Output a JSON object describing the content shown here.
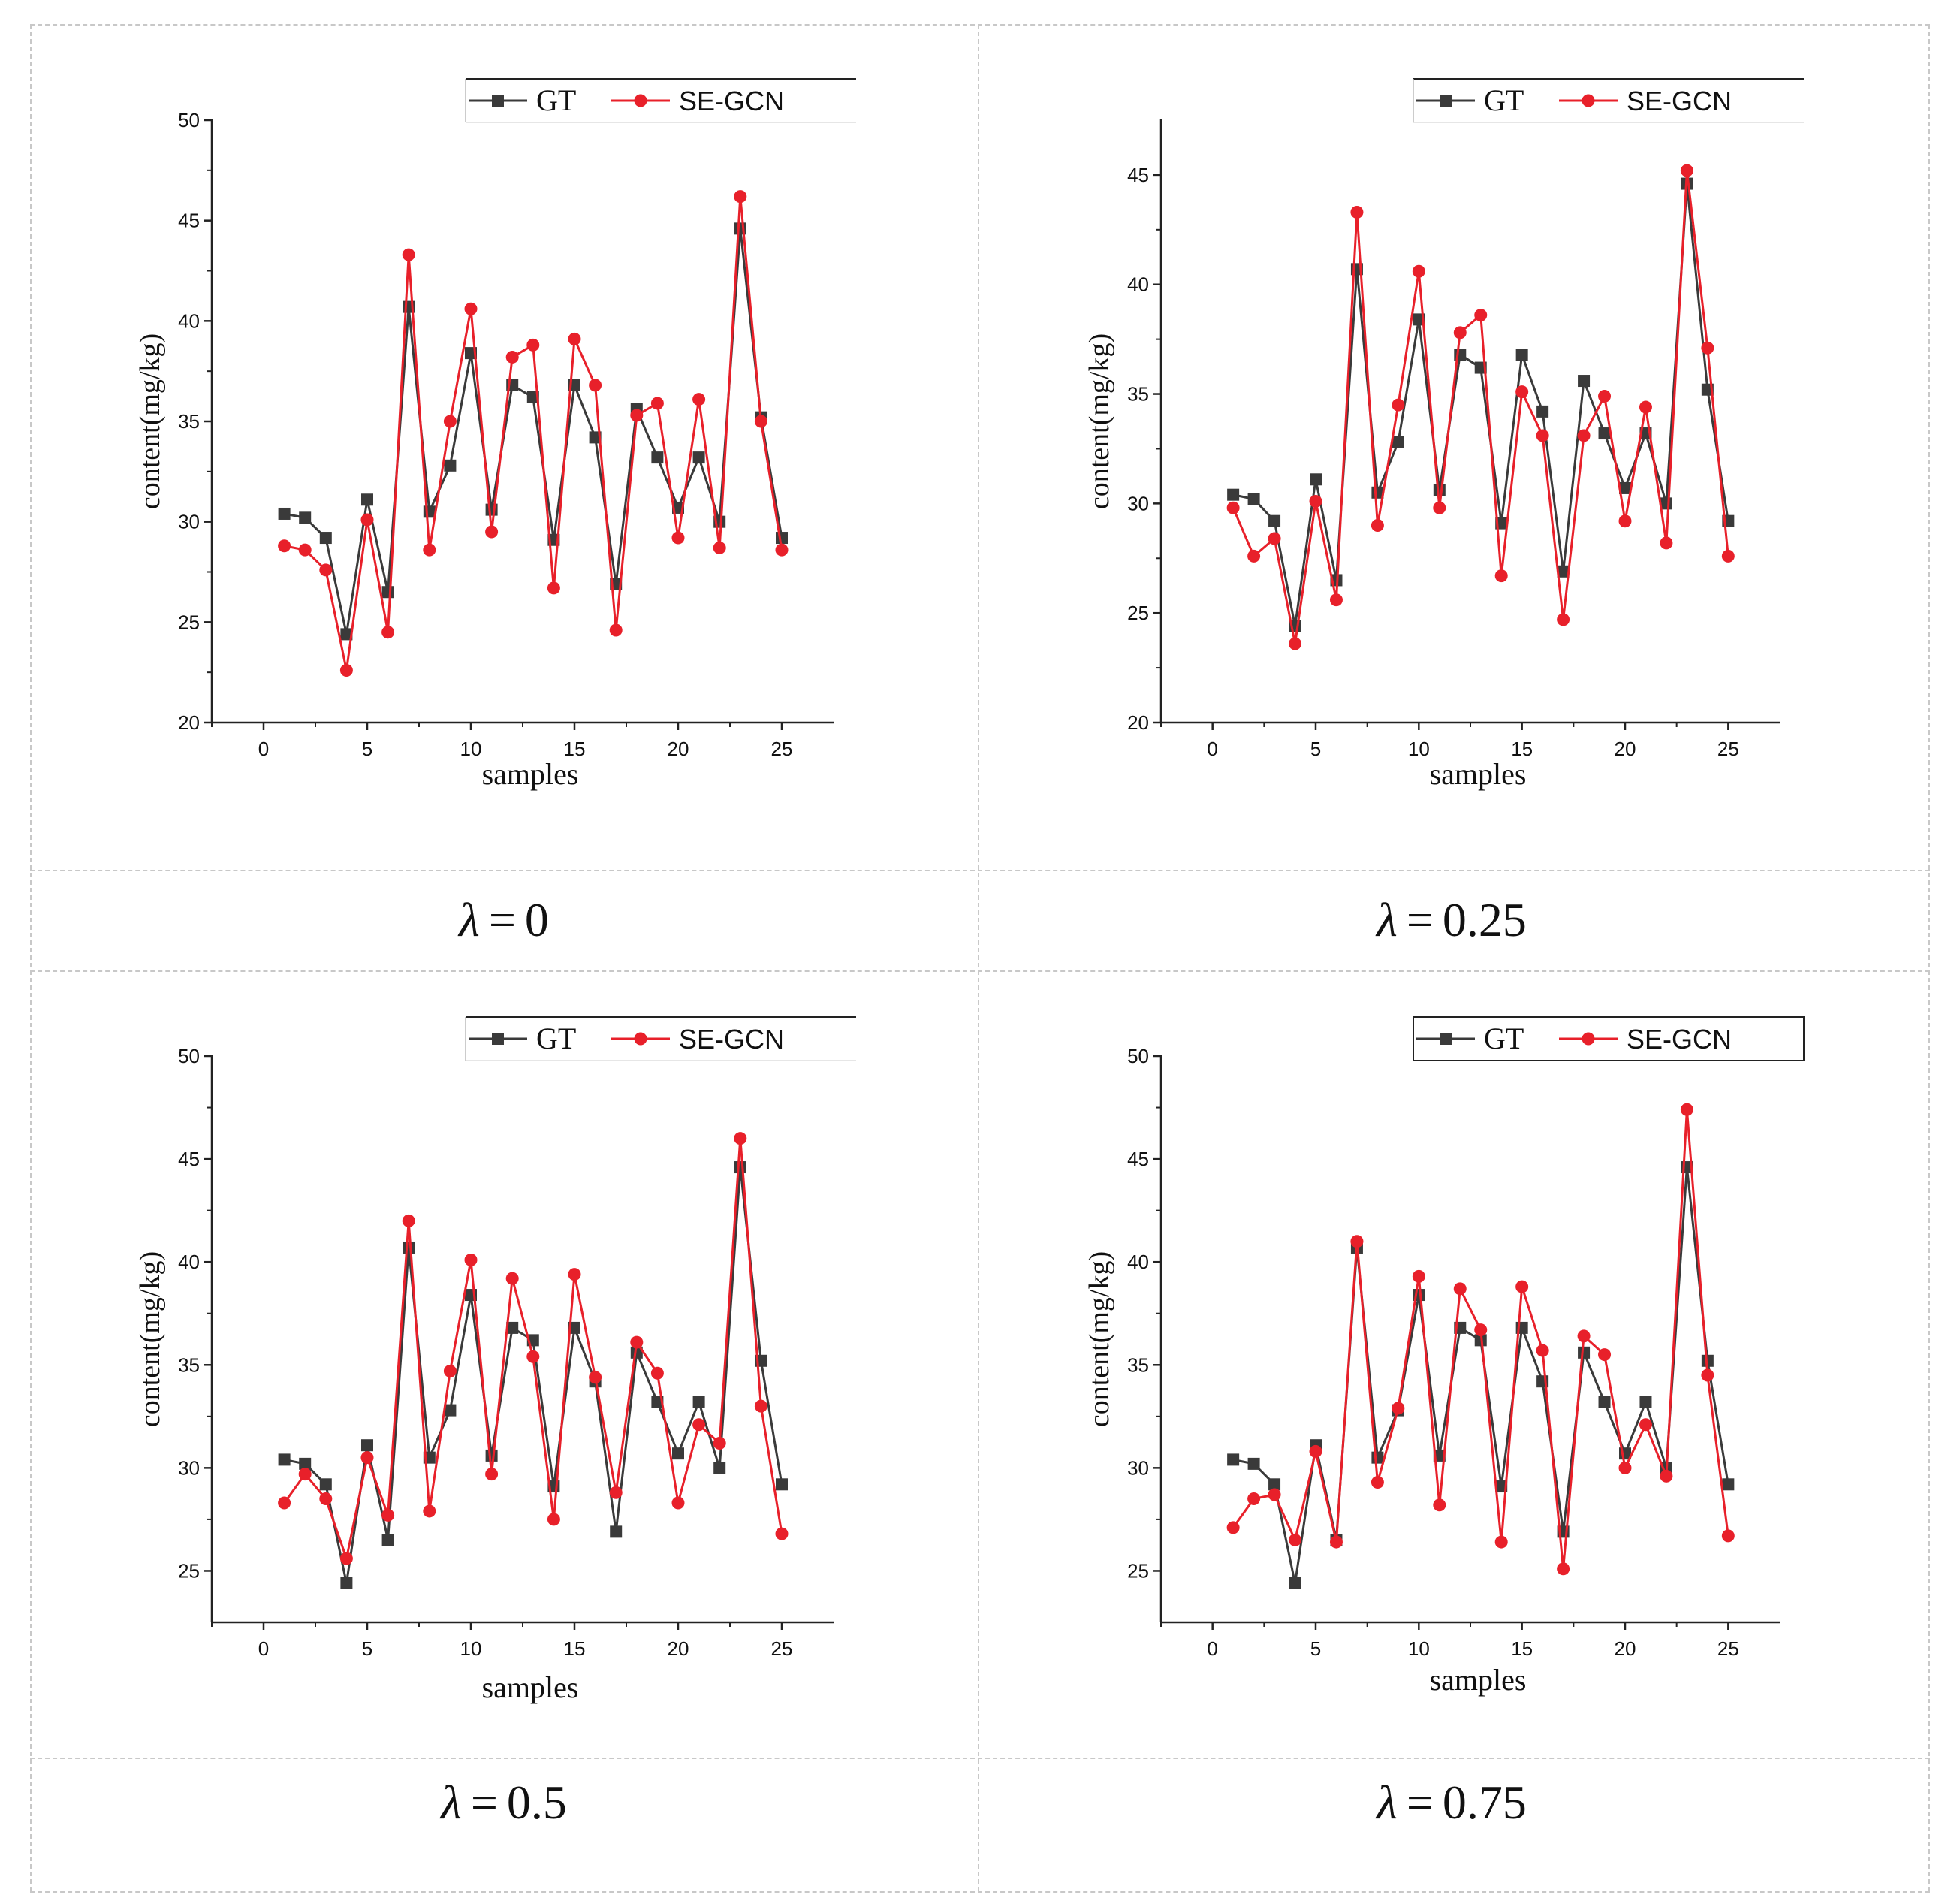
{
  "colors": {
    "gt": "#3a3a3a",
    "pred": "#e8202a",
    "grid": "#c8c8c8"
  },
  "chart_data": [
    {
      "type": "line",
      "caption": {
        "symbol": "λ",
        "equals": "=",
        "value": "0"
      },
      "xlabel": "samples",
      "ylabel": "content(mg/kg)",
      "xlim": [
        -2.5,
        27.5
      ],
      "ylim": [
        20,
        50
      ],
      "xticks": [
        0,
        5,
        10,
        15,
        20,
        25
      ],
      "yticks": [
        20,
        25,
        30,
        35,
        40,
        45,
        50
      ],
      "legend": {
        "position": "top-right",
        "boxed": false
      },
      "x": [
        1,
        2,
        3,
        4,
        5,
        6,
        7,
        8,
        9,
        10,
        11,
        12,
        13,
        14,
        15,
        16,
        17,
        18,
        19,
        20,
        21,
        22,
        23,
        24,
        25
      ],
      "series": [
        {
          "name": "GT",
          "marker": "square",
          "color": "#3a3a3a",
          "values": [
            30.4,
            30.2,
            29.2,
            24.4,
            31.1,
            26.5,
            40.7,
            30.5,
            32.8,
            38.4,
            30.6,
            36.8,
            36.2,
            29.1,
            36.8,
            34.2,
            26.9,
            35.6,
            33.2,
            30.7,
            33.2,
            30.0,
            44.6,
            35.2,
            29.2
          ]
        },
        {
          "name": "SE-GCN",
          "marker": "circle",
          "color": "#e8202a",
          "values": [
            28.8,
            28.6,
            27.6,
            22.6,
            30.1,
            24.5,
            43.3,
            28.6,
            35.0,
            40.6,
            29.5,
            38.2,
            38.8,
            26.7,
            39.1,
            36.8,
            24.6,
            35.3,
            35.9,
            29.2,
            36.1,
            28.7,
            46.2,
            35.0,
            28.6
          ]
        }
      ]
    },
    {
      "type": "line",
      "caption": {
        "symbol": "λ",
        "equals": "=",
        "value": "0.25"
      },
      "xlabel": "samples",
      "ylabel": "content(mg/kg)",
      "xlim": [
        -2.5,
        27.5
      ],
      "ylim": [
        20,
        47.5
      ],
      "xticks": [
        0,
        5,
        10,
        15,
        20,
        25
      ],
      "yticks": [
        20,
        25,
        30,
        35,
        40,
        45
      ],
      "legend": {
        "position": "top-right",
        "boxed": false
      },
      "x": [
        1,
        2,
        3,
        4,
        5,
        6,
        7,
        8,
        9,
        10,
        11,
        12,
        13,
        14,
        15,
        16,
        17,
        18,
        19,
        20,
        21,
        22,
        23,
        24,
        25
      ],
      "series": [
        {
          "name": "GT",
          "marker": "square",
          "color": "#3a3a3a",
          "values": [
            30.4,
            30.2,
            29.2,
            24.4,
            31.1,
            26.5,
            40.7,
            30.5,
            32.8,
            38.4,
            30.6,
            36.8,
            36.2,
            29.1,
            36.8,
            34.2,
            26.9,
            35.6,
            33.2,
            30.7,
            33.2,
            30.0,
            44.6,
            35.2,
            29.2
          ]
        },
        {
          "name": "SE-GCN",
          "marker": "circle",
          "color": "#e8202a",
          "values": [
            29.8,
            27.6,
            28.4,
            23.6,
            30.1,
            25.6,
            43.3,
            29.0,
            34.5,
            40.6,
            29.8,
            37.8,
            38.6,
            26.7,
            35.1,
            33.1,
            24.7,
            33.1,
            34.9,
            29.2,
            34.4,
            28.2,
            45.2,
            37.1,
            27.6
          ]
        }
      ]
    },
    {
      "type": "line",
      "caption": {
        "symbol": "λ",
        "equals": "=",
        "value": "0.5"
      },
      "xlabel": "samples",
      "ylabel": "content(mg/kg)",
      "xlim": [
        -2.5,
        27.5
      ],
      "ylim": [
        22.5,
        50
      ],
      "xticks": [
        0,
        5,
        10,
        15,
        20,
        25
      ],
      "yticks": [
        25,
        30,
        35,
        40,
        45,
        50
      ],
      "legend": {
        "position": "top-right",
        "boxed": false
      },
      "x": [
        1,
        2,
        3,
        4,
        5,
        6,
        7,
        8,
        9,
        10,
        11,
        12,
        13,
        14,
        15,
        16,
        17,
        18,
        19,
        20,
        21,
        22,
        23,
        24,
        25
      ],
      "series": [
        {
          "name": "GT",
          "marker": "square",
          "color": "#3a3a3a",
          "values": [
            30.4,
            30.2,
            29.2,
            24.4,
            31.1,
            26.5,
            40.7,
            30.5,
            32.8,
            38.4,
            30.6,
            36.8,
            36.2,
            29.1,
            36.8,
            34.2,
            26.9,
            35.6,
            33.2,
            30.7,
            33.2,
            30.0,
            44.6,
            35.2,
            29.2
          ]
        },
        {
          "name": "SE-GCN",
          "marker": "circle",
          "color": "#e8202a",
          "values": [
            28.3,
            29.7,
            28.5,
            25.6,
            30.5,
            27.7,
            42.0,
            27.9,
            34.7,
            40.1,
            29.7,
            39.2,
            35.4,
            27.5,
            39.4,
            34.4,
            28.8,
            36.1,
            34.6,
            28.3,
            32.1,
            31.2,
            46.0,
            33.0,
            26.8
          ]
        }
      ]
    },
    {
      "type": "line",
      "caption": {
        "symbol": "λ",
        "equals": "=",
        "value": "0.75"
      },
      "xlabel": "samples",
      "ylabel": "content(mg/kg)",
      "xlim": [
        -2.5,
        27.5
      ],
      "ylim": [
        22.5,
        50
      ],
      "xticks": [
        0,
        5,
        10,
        15,
        20,
        25
      ],
      "yticks": [
        25,
        30,
        35,
        40,
        45,
        50
      ],
      "legend": {
        "position": "top-right",
        "boxed": true
      },
      "x": [
        1,
        2,
        3,
        4,
        5,
        6,
        7,
        8,
        9,
        10,
        11,
        12,
        13,
        14,
        15,
        16,
        17,
        18,
        19,
        20,
        21,
        22,
        23,
        24,
        25
      ],
      "series": [
        {
          "name": "GT",
          "marker": "square",
          "color": "#3a3a3a",
          "values": [
            30.4,
            30.2,
            29.2,
            24.4,
            31.1,
            26.5,
            40.7,
            30.5,
            32.8,
            38.4,
            30.6,
            36.8,
            36.2,
            29.1,
            36.8,
            34.2,
            26.9,
            35.6,
            33.2,
            30.7,
            33.2,
            30.0,
            44.6,
            35.2,
            29.2
          ]
        },
        {
          "name": "SE-GCN",
          "marker": "circle",
          "color": "#e8202a",
          "values": [
            27.1,
            28.5,
            28.7,
            26.5,
            30.8,
            26.4,
            41.0,
            29.3,
            32.9,
            39.3,
            28.2,
            38.7,
            36.7,
            26.4,
            38.8,
            35.7,
            25.1,
            36.4,
            35.5,
            30.0,
            32.1,
            29.6,
            47.4,
            34.5,
            26.7
          ]
        }
      ]
    }
  ]
}
